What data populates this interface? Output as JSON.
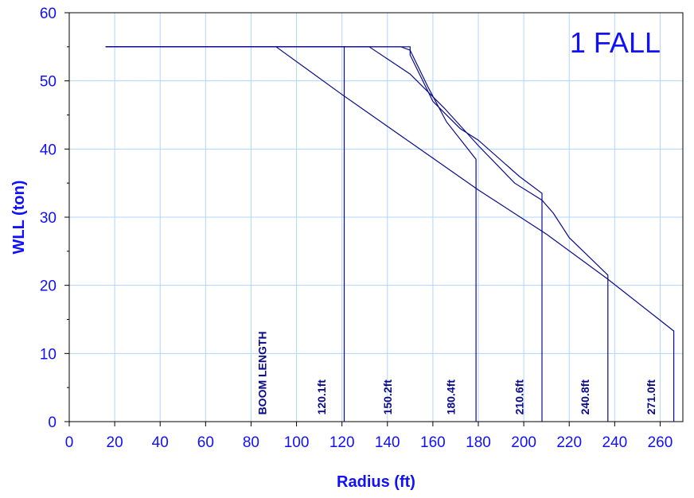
{
  "chart_data": {
    "type": "line",
    "title": "1 FALL",
    "xlabel": "Radius (ft)",
    "ylabel": "WLL (ton)",
    "xlim": [
      0,
      270
    ],
    "ylim": [
      0,
      60
    ],
    "x_ticks": [
      0,
      20,
      40,
      60,
      80,
      100,
      120,
      140,
      160,
      180,
      200,
      220,
      240,
      260
    ],
    "y_ticks": [
      0,
      10,
      20,
      30,
      40,
      50,
      60
    ],
    "grid": true,
    "legend": "none",
    "boom_length_label": "BOOM LENGTH",
    "series": [
      {
        "label": "120.1ft",
        "points": [
          [
            16,
            55
          ],
          [
            121,
            55
          ],
          [
            121,
            0
          ]
        ]
      },
      {
        "label": "150.2ft",
        "points": [
          [
            16,
            55
          ],
          [
            146,
            55
          ],
          [
            150,
            54.5
          ],
          [
            158,
            49
          ],
          [
            166,
            44
          ],
          [
            179,
            38.5
          ],
          [
            179,
            0
          ]
        ]
      },
      {
        "label": "180.4ft",
        "points": [
          [
            16,
            55
          ],
          [
            150,
            55
          ],
          [
            150,
            53.8
          ],
          [
            160,
            47
          ],
          [
            172,
            43
          ],
          [
            180,
            41.3
          ],
          [
            198,
            36
          ],
          [
            208,
            33.5
          ],
          [
            208,
            0
          ]
        ]
      },
      {
        "label": "210.6ft",
        "points": [
          [
            16,
            55
          ],
          [
            132,
            55
          ],
          [
            150,
            51
          ],
          [
            165,
            46
          ],
          [
            180,
            40.5
          ],
          [
            196,
            35
          ],
          [
            208,
            32.5
          ],
          [
            213,
            30.6
          ],
          [
            220,
            27
          ],
          [
            237,
            21.5
          ],
          [
            237,
            0
          ]
        ]
      },
      {
        "label": "240.8ft",
        "points": [
          [
            16,
            55
          ],
          [
            91,
            55
          ],
          [
            120,
            48
          ],
          [
            150,
            41
          ],
          [
            180,
            34
          ],
          [
            210,
            27.5
          ],
          [
            237,
            20.9
          ],
          [
            266,
            13.3
          ],
          [
            266,
            0
          ]
        ]
      }
    ],
    "extra_labels": [
      "271.0ft"
    ]
  },
  "colors": {
    "axis_text": "#1010ff",
    "lines": "#0a0a8c",
    "grid": "#b3d4ff",
    "frame": "#000000"
  }
}
